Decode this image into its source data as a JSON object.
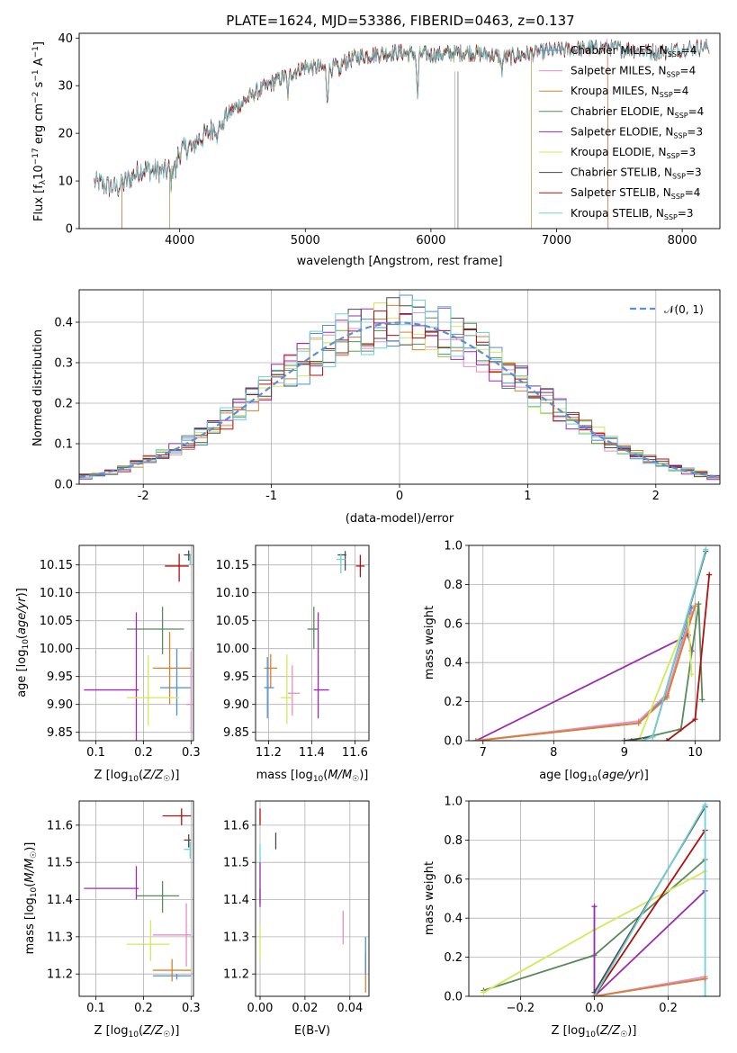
{
  "figure": {
    "title": "PLATE=1624, MJD=53386, FIBERID=0463, z=0.137"
  },
  "legend_spectrum": [
    {
      "name": "Chabrier MILES, N",
      "sub": "SSP",
      "tail": "=4",
      "color": "#4c8fd6"
    },
    {
      "name": "Salpeter MILES, N",
      "sub": "SSP",
      "tail": "=4",
      "color": "#e58ec9"
    },
    {
      "name": "Kroupa MILES, N",
      "sub": "SSP",
      "tail": "=4",
      "color": "#d9802e"
    },
    {
      "name": "Chabrier ELODIE, N",
      "sub": "SSP",
      "tail": "=4",
      "color": "#5a8a5a"
    },
    {
      "name": "Salpeter ELODIE, N",
      "sub": "SSP",
      "tail": "=3",
      "color": "#9c2bb0"
    },
    {
      "name": "Kroupa ELODIE, N",
      "sub": "SSP",
      "tail": "=3",
      "color": "#d4e85a"
    },
    {
      "name": "Chabrier STELIB, N",
      "sub": "SSP",
      "tail": "=3",
      "color": "#4a4a4a"
    },
    {
      "name": "Salpeter STELIB, N",
      "sub": "SSP",
      "tail": "=4",
      "color": "#b01010"
    },
    {
      "name": "Kroupa STELIB, N",
      "sub": "SSP",
      "tail": "=3",
      "color": "#6fd0d8"
    }
  ],
  "legend_hist": {
    "label": "𝒩(0, 1)",
    "color": "#5b8fd6"
  },
  "chart_data": [
    {
      "id": "spectrum",
      "type": "line",
      "title": "PLATE=1624, MJD=53386, FIBERID=0463, z=0.137",
      "xlabel": "wavelength [Angstrom, rest frame]",
      "ylabel": "Flux [f_λ 10^-17 erg cm^-2 s^-1 A^-1]",
      "xlim": [
        3200,
        8300
      ],
      "ylim": [
        0,
        41
      ],
      "xticks": [
        4000,
        5000,
        6000,
        7000,
        8000
      ],
      "yticks": [
        0,
        10,
        20,
        30,
        40
      ],
      "continuum": [
        [
          3350,
          9.5
        ],
        [
          3500,
          8.5
        ],
        [
          3700,
          12.5
        ],
        [
          3900,
          12.0
        ],
        [
          4000,
          16.0
        ],
        [
          4200,
          19.5
        ],
        [
          4400,
          24.5
        ],
        [
          4600,
          28.5
        ],
        [
          4800,
          31.5
        ],
        [
          5000,
          34.0
        ],
        [
          5200,
          33.5
        ],
        [
          5400,
          36.0
        ],
        [
          5700,
          37.0
        ],
        [
          6000,
          36.5
        ],
        [
          6300,
          37.0
        ],
        [
          6600,
          36.0
        ],
        [
          7000,
          37.5
        ],
        [
          7400,
          38.0
        ],
        [
          7800,
          37.0
        ],
        [
          8100,
          38.0
        ]
      ],
      "absorption": [
        [
          3933,
          3.5
        ],
        [
          3968,
          3.0
        ],
        [
          4102,
          2.0
        ],
        [
          4304,
          3.0
        ],
        [
          4340,
          2.0
        ],
        [
          4861,
          4.0
        ],
        [
          5175,
          6.0
        ],
        [
          5270,
          2.5
        ],
        [
          5893,
          9.0
        ],
        [
          6563,
          3.0
        ]
      ],
      "sky_lines": [
        6190,
        6212,
        6217
      ],
      "series_edges": [
        {
          "name": "Chabrier MILES",
          "start": 3540,
          "end": 7410
        },
        {
          "name": "Salpeter MILES",
          "start": 3540,
          "end": 7410
        },
        {
          "name": "Kroupa MILES",
          "start": 3540,
          "end": 7410
        },
        {
          "name": "Chabrier ELODIE",
          "start": 3920,
          "end": 6800
        },
        {
          "name": "Salpeter ELODIE",
          "start": 3920,
          "end": 6800
        },
        {
          "name": "Kroupa ELODIE",
          "start": 3920,
          "end": 6800
        },
        {
          "name": "Chabrier STELIB",
          "start": 3300,
          "end": 9000
        },
        {
          "name": "Salpeter STELIB",
          "start": 3300,
          "end": 9000
        },
        {
          "name": "Kroupa STELIB",
          "start": 3300,
          "end": 9000
        }
      ]
    },
    {
      "id": "residual_hist",
      "type": "line",
      "xlabel": "(data-model)/error",
      "ylabel": "Normed distribution",
      "xlim": [
        -2.5,
        2.5
      ],
      "ylim": [
        0,
        0.48
      ],
      "xticks": [
        -2,
        -1,
        0,
        1,
        2
      ],
      "yticks": [
        0.0,
        0.1,
        0.2,
        0.3,
        0.4
      ],
      "bin_width": 0.1,
      "reference_curve": "N(0,1)"
    },
    {
      "id": "age_vs_Z",
      "type": "scatter",
      "xlabel": "Z [log10(Z/Z☉)]",
      "ylabel": "age [log10(age/yr)]",
      "xlim": [
        0.065,
        0.305
      ],
      "ylim": [
        9.835,
        10.185
      ],
      "xticks": [
        0.1,
        0.2,
        0.3
      ],
      "yticks": [
        9.85,
        9.9,
        9.95,
        10.0,
        10.05,
        10.1,
        10.15
      ],
      "points": [
        {
          "x": 0.275,
          "xl": 0.245,
          "xh": 0.295,
          "y": 10.148,
          "yl": 10.12,
          "yh": 10.17,
          "color": "#b01010"
        },
        {
          "x": 0.295,
          "xl": 0.285,
          "xh": 0.3,
          "y": 10.168,
          "yl": 10.158,
          "yh": 10.176,
          "color": "#4a4a4a"
        },
        {
          "x": 0.298,
          "xl": 0.298,
          "xh": 0.3,
          "y": 10.16,
          "yl": 10.15,
          "yh": 10.17,
          "color": "#6fd0d8"
        },
        {
          "x": 0.24,
          "xl": 0.165,
          "xh": 0.285,
          "y": 10.035,
          "yl": 9.99,
          "yh": 10.075,
          "color": "#5a8a5a"
        },
        {
          "x": 0.185,
          "xl": 0.075,
          "xh": 0.19,
          "y": 9.926,
          "yl": 9.81,
          "yh": 10.065,
          "color": "#9c2bb0"
        },
        {
          "x": 0.255,
          "xl": 0.22,
          "xh": 0.3,
          "y": 9.965,
          "yl": 9.9,
          "yh": 10.03,
          "color": "#d9802e"
        },
        {
          "x": 0.27,
          "xl": 0.235,
          "xh": 0.3,
          "y": 9.93,
          "yl": 9.88,
          "yh": 10.0,
          "color": "#4c8fd6"
        },
        {
          "x": 0.3,
          "xl": 0.29,
          "xh": 0.3,
          "y": 9.9,
          "yl": 9.85,
          "yh": 9.995,
          "color": "#e58ec9"
        },
        {
          "x": 0.21,
          "xl": 0.165,
          "xh": 0.275,
          "y": 9.912,
          "yl": 9.862,
          "yh": 9.988,
          "color": "#d4e85a"
        }
      ]
    },
    {
      "id": "age_vs_mass",
      "type": "scatter",
      "xlabel": "mass [log10(M/M☉)]",
      "ylabel": "",
      "xlim": [
        11.14,
        11.665
      ],
      "ylim": [
        9.835,
        10.185
      ],
      "xticks": [
        11.2,
        11.4,
        11.6
      ],
      "yticks": [
        9.85,
        9.9,
        9.95,
        10.0,
        10.05,
        10.1,
        10.15
      ],
      "points": [
        {
          "x": 11.625,
          "xl": 11.605,
          "xh": 11.645,
          "y": 10.148,
          "yl": 10.128,
          "yh": 10.168,
          "color": "#b01010"
        },
        {
          "x": 11.555,
          "xl": 11.52,
          "xh": 11.56,
          "y": 10.168,
          "yl": 10.14,
          "yh": 10.175,
          "color": "#4a4a4a"
        },
        {
          "x": 11.535,
          "xl": 11.515,
          "xh": 11.555,
          "y": 10.16,
          "yl": 10.135,
          "yh": 10.17,
          "color": "#6fd0d8"
        },
        {
          "x": 11.41,
          "xl": 11.38,
          "xh": 11.43,
          "y": 10.035,
          "yl": 10.0,
          "yh": 10.075,
          "color": "#5a8a5a"
        },
        {
          "x": 11.43,
          "xl": 11.41,
          "xh": 11.48,
          "y": 9.926,
          "yl": 9.875,
          "yh": 10.065,
          "color": "#9c2bb0"
        },
        {
          "x": 11.21,
          "xl": 11.18,
          "xh": 11.24,
          "y": 9.965,
          "yl": 9.93,
          "yh": 9.99,
          "color": "#d9802e"
        },
        {
          "x": 11.195,
          "xl": 11.18,
          "xh": 11.225,
          "y": 9.93,
          "yl": 9.875,
          "yh": 9.985,
          "color": "#4c8fd6"
        },
        {
          "x": 11.31,
          "xl": 11.29,
          "xh": 11.345,
          "y": 9.92,
          "yl": 9.88,
          "yh": 9.97,
          "color": "#e58ec9"
        },
        {
          "x": 11.285,
          "xl": 11.255,
          "xh": 11.31,
          "y": 9.912,
          "yl": 9.865,
          "yh": 9.99,
          "color": "#d4e85a"
        }
      ]
    },
    {
      "id": "mass_weight_vs_age",
      "type": "line",
      "xlabel": "age [log10(age/yr)]",
      "ylabel": "mass weight",
      "xlim": [
        6.8,
        10.35
      ],
      "ylim": [
        0.0,
        1.0
      ],
      "xticks": [
        7,
        8,
        9,
        10
      ],
      "yticks": [
        0.0,
        0.2,
        0.4,
        0.6,
        0.8,
        1.0
      ],
      "series": [
        {
          "name": "Salpeter ELODIE",
          "color": "#9c2bb0",
          "points": [
            [
              6.9,
              0.0
            ],
            [
              9.9,
              0.54
            ],
            [
              9.95,
              0.46
            ]
          ]
        },
        {
          "name": "Chabrier MILES",
          "color": "#4c8fd6",
          "points": [
            [
              6.9,
              0.0
            ],
            [
              9.2,
              0.09
            ],
            [
              9.6,
              0.23
            ],
            [
              9.95,
              0.68
            ]
          ]
        },
        {
          "name": "Salpeter MILES",
          "color": "#e58ec9",
          "points": [
            [
              6.9,
              0.0
            ],
            [
              9.2,
              0.1
            ],
            [
              9.6,
              0.24
            ],
            [
              9.95,
              0.66
            ]
          ]
        },
        {
          "name": "Kroupa MILES",
          "color": "#d9802e",
          "points": [
            [
              6.9,
              0.0
            ],
            [
              9.2,
              0.09
            ],
            [
              9.6,
              0.22
            ],
            [
              10.0,
              0.69
            ]
          ]
        },
        {
          "name": "Chabrier ELODIE",
          "color": "#5a8a5a",
          "points": [
            [
              9.1,
              0.0
            ],
            [
              9.8,
              0.06
            ],
            [
              10.05,
              0.7
            ],
            [
              10.1,
              0.21
            ]
          ]
        },
        {
          "name": "Kroupa ELODIE",
          "color": "#d4e85a",
          "points": [
            [
              9.2,
              0.0
            ],
            [
              9.9,
              0.64
            ],
            [
              9.95,
              0.34
            ]
          ]
        },
        {
          "name": "Chabrier STELIB",
          "color": "#4a4a4a",
          "points": [
            [
              9.0,
              0.0
            ],
            [
              9.4,
              0.02
            ],
            [
              10.15,
              0.97
            ]
          ]
        },
        {
          "name": "Salpeter STELIB",
          "color": "#b01010",
          "points": [
            [
              9.6,
              0.0
            ],
            [
              10.0,
              0.11
            ],
            [
              10.2,
              0.85
            ]
          ]
        },
        {
          "name": "Kroupa STELIB",
          "color": "#6fd0d8",
          "points": [
            [
              9.25,
              0.0
            ],
            [
              9.4,
              0.02
            ],
            [
              10.15,
              0.98
            ]
          ]
        }
      ]
    },
    {
      "id": "mass_vs_Z",
      "type": "scatter",
      "xlabel": "Z [log10(Z/Z☉)]",
      "ylabel": "mass [log10(M/M☉)]",
      "xlim": [
        0.065,
        0.305
      ],
      "ylim": [
        11.14,
        11.665
      ],
      "xticks": [
        0.1,
        0.2,
        0.3
      ],
      "yticks": [
        11.2,
        11.3,
        11.4,
        11.5,
        11.6
      ],
      "points": [
        {
          "x": 0.28,
          "xl": 0.24,
          "xh": 0.3,
          "y": 11.625,
          "yl": 11.6,
          "yh": 11.645,
          "color": "#b01010"
        },
        {
          "x": 0.295,
          "xl": 0.285,
          "xh": 0.3,
          "y": 11.56,
          "yl": 11.54,
          "yh": 11.575,
          "color": "#4a4a4a"
        },
        {
          "x": 0.298,
          "xl": 0.285,
          "xh": 0.3,
          "y": 11.535,
          "yl": 11.51,
          "yh": 11.555,
          "color": "#6fd0d8"
        },
        {
          "x": 0.24,
          "xl": 0.185,
          "xh": 0.275,
          "y": 11.41,
          "yl": 11.365,
          "yh": 11.45,
          "color": "#5a8a5a"
        },
        {
          "x": 0.185,
          "xl": 0.075,
          "xh": 0.19,
          "y": 11.43,
          "yl": 11.4,
          "yh": 11.49,
          "color": "#9c2bb0"
        },
        {
          "x": 0.26,
          "xl": 0.22,
          "xh": 0.3,
          "y": 11.21,
          "yl": 11.18,
          "yh": 11.24,
          "color": "#d9802e"
        },
        {
          "x": 0.27,
          "xl": 0.22,
          "xh": 0.3,
          "y": 11.195,
          "yl": 11.185,
          "yh": 11.2,
          "color": "#4c8fd6"
        },
        {
          "x": 0.29,
          "xl": 0.22,
          "xh": 0.3,
          "y": 11.305,
          "yl": 11.22,
          "yh": 11.39,
          "color": "#e58ec9"
        },
        {
          "x": 0.215,
          "xl": 0.165,
          "xh": 0.255,
          "y": 11.28,
          "yl": 11.235,
          "yh": 11.345,
          "color": "#d4e85a"
        }
      ]
    },
    {
      "id": "mass_vs_ebv",
      "type": "scatter",
      "xlabel": "E(B-V)",
      "ylabel": "",
      "xlim": [
        -0.002,
        0.0485
      ],
      "ylim": [
        11.14,
        11.665
      ],
      "xticks": [
        0.0,
        0.02,
        0.04
      ],
      "yticks": [
        11.2,
        11.3,
        11.4,
        11.5,
        11.6
      ],
      "points": [
        {
          "x": 0.0,
          "xl": 0.0,
          "xh": 0.0,
          "y": 11.625,
          "yl": 11.6,
          "yh": 11.645,
          "color": "#b01010"
        },
        {
          "x": 0.007,
          "xl": 0.007,
          "xh": 0.007,
          "y": 11.56,
          "yl": 11.535,
          "yh": 11.58,
          "color": "#4a4a4a"
        },
        {
          "x": 0.0,
          "xl": 0.0,
          "xh": 0.0,
          "y": 11.535,
          "yl": 11.5,
          "yh": 11.55,
          "color": "#6fd0d8"
        },
        {
          "x": 0.0,
          "xl": 0.0,
          "xh": 0.0,
          "y": 11.41,
          "yl": 11.39,
          "yh": 11.43,
          "color": "#5a8a5a"
        },
        {
          "x": 0.0,
          "xl": 0.0,
          "xh": 0.0,
          "y": 11.43,
          "yl": 11.38,
          "yh": 11.5,
          "color": "#9c2bb0"
        },
        {
          "x": 0.047,
          "xl": 0.047,
          "xh": 0.047,
          "y": 11.21,
          "yl": 11.15,
          "yh": 11.26,
          "color": "#d9802e"
        },
        {
          "x": 0.047,
          "xl": 0.047,
          "xh": 0.047,
          "y": 11.25,
          "yl": 11.2,
          "yh": 11.3,
          "color": "#4c8fd6"
        },
        {
          "x": 0.037,
          "xl": 0.037,
          "xh": 0.037,
          "y": 11.32,
          "yl": 11.28,
          "yh": 11.37,
          "color": "#e58ec9"
        },
        {
          "x": 0.0,
          "xl": 0.0,
          "xh": 0.0,
          "y": 11.28,
          "yl": 11.24,
          "yh": 11.33,
          "color": "#d4e85a"
        }
      ]
    },
    {
      "id": "mass_weight_vs_Z",
      "type": "line",
      "xlabel": "Z [log10(Z/Z☉)]",
      "ylabel": "mass weight",
      "xlim": [
        -0.34,
        0.34
      ],
      "ylim": [
        0.0,
        1.0
      ],
      "xticks": [
        -0.2,
        0.0,
        0.2
      ],
      "yticks": [
        0.0,
        0.2,
        0.4,
        0.6,
        0.8,
        1.0
      ],
      "series": [
        {
          "name": "Chabrier ELODIE",
          "color": "#5a8a5a",
          "points": [
            [
              -0.3,
              0.03
            ],
            [
              0.0,
              0.21
            ],
            [
              0.3,
              0.7
            ]
          ]
        },
        {
          "name": "Kroupa ELODIE",
          "color": "#d4e85a",
          "points": [
            [
              -0.3,
              0.02
            ],
            [
              0.0,
              0.34
            ],
            [
              0.3,
              0.64
            ]
          ]
        },
        {
          "name": "Salpeter ELODIE",
          "color": "#9c2bb0",
          "points": [
            [
              0.0,
              0.46
            ],
            [
              0.0,
              0.0
            ],
            [
              0.3,
              0.54
            ]
          ]
        },
        {
          "name": "Salpeter STELIB",
          "color": "#b01010",
          "points": [
            [
              0.0,
              0.0
            ],
            [
              0.3,
              0.85
            ]
          ]
        },
        {
          "name": "Chabrier STELIB",
          "color": "#4a4a4a",
          "points": [
            [
              0.0,
              0.02
            ],
            [
              0.3,
              0.97
            ]
          ]
        },
        {
          "name": "Kroupa STELIB",
          "color": "#6fd0d8",
          "points": [
            [
              0.0,
              0.0
            ],
            [
              0.3,
              0.98
            ],
            [
              0.3,
              0.0
            ]
          ]
        },
        {
          "name": "Chabrier MILES",
          "color": "#4c8fd6",
          "points": [
            [
              0.0,
              0.0
            ],
            [
              0.3,
              0.09
            ]
          ]
        },
        {
          "name": "Salpeter MILES",
          "color": "#e58ec9",
          "points": [
            [
              0.0,
              0.0
            ],
            [
              0.3,
              0.1
            ]
          ]
        },
        {
          "name": "Kroupa MILES",
          "color": "#d9802e",
          "points": [
            [
              0.0,
              0.0
            ],
            [
              0.3,
              0.09
            ]
          ]
        }
      ]
    }
  ]
}
